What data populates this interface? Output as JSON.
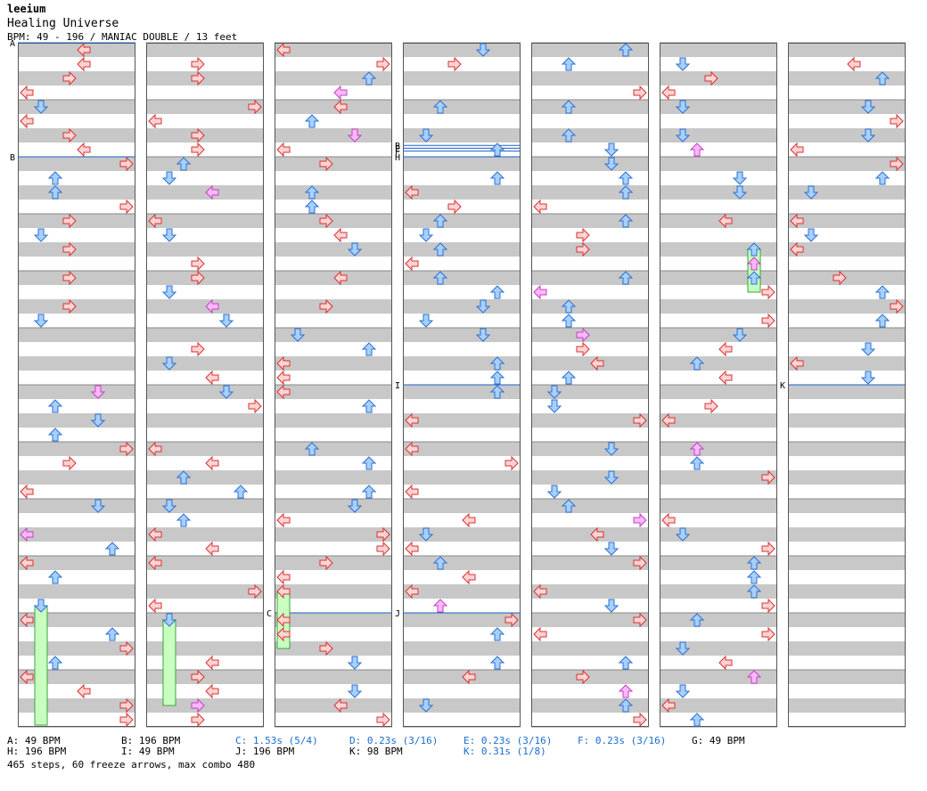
{
  "song": {
    "artist": "leeium",
    "title": "Healing Universe",
    "info": "BPM: 49 - 196 / MANIAC DOUBLE / 13 feet"
  },
  "colors": {
    "stripe": "#c8c8c8",
    "border": "#555555",
    "red_fill": "#ffd4d4",
    "red_stroke": "#d83030",
    "blue_fill": "#a8d0ff",
    "blue_stroke": "#2a70d0",
    "pink_fill": "#ffb8ff",
    "pink_stroke": "#c040c0",
    "freeze_fill": "#c8ffc0",
    "freeze_stroke": "#40a040",
    "marker_line": "#1a60c8"
  },
  "markers": [
    {
      "label": "A",
      "col": 0,
      "beat": 0
    },
    {
      "label": "B",
      "col": 0,
      "beat": 8
    },
    {
      "label": "B",
      "col": 3,
      "beat": 7.2
    },
    {
      "label": "E",
      "col": 3,
      "beat": 7.4
    },
    {
      "label": "F",
      "col": 3,
      "beat": 7.6
    },
    {
      "label": "H",
      "col": 3,
      "beat": 8
    },
    {
      "label": "I",
      "col": 3,
      "beat": 24
    },
    {
      "label": "C",
      "col": 2,
      "beat": 40
    },
    {
      "label": "J",
      "col": 3,
      "beat": 40
    },
    {
      "label": "K",
      "col": 6,
      "beat": 24
    }
  ],
  "legend": [
    {
      "text": "A: 49 BPM",
      "style": "gray"
    },
    {
      "text": "B: 196 BPM",
      "style": "gray"
    },
    {
      "text": "C: 1.53s (5/4)",
      "style": "blue"
    },
    {
      "text": "D: 0.23s (3/16)",
      "style": "blue"
    },
    {
      "text": "E: 0.23s (3/16)",
      "style": "blue"
    },
    {
      "text": "F: 0.23s (3/16)",
      "style": "blue"
    },
    {
      "text": "G: 49 BPM",
      "style": "gray"
    },
    {
      "text": "H: 196 BPM",
      "style": "gray"
    },
    {
      "text": "I: 49 BPM",
      "style": "gray"
    },
    {
      "text": "J: 196 BPM",
      "style": "gray"
    },
    {
      "text": "K: 98 BPM",
      "style": "gray"
    },
    {
      "text": "K: 0.31s (1/8)",
      "style": "blue"
    }
  ],
  "footer": "465 steps, 60 freeze arrows, max combo 480"
}
